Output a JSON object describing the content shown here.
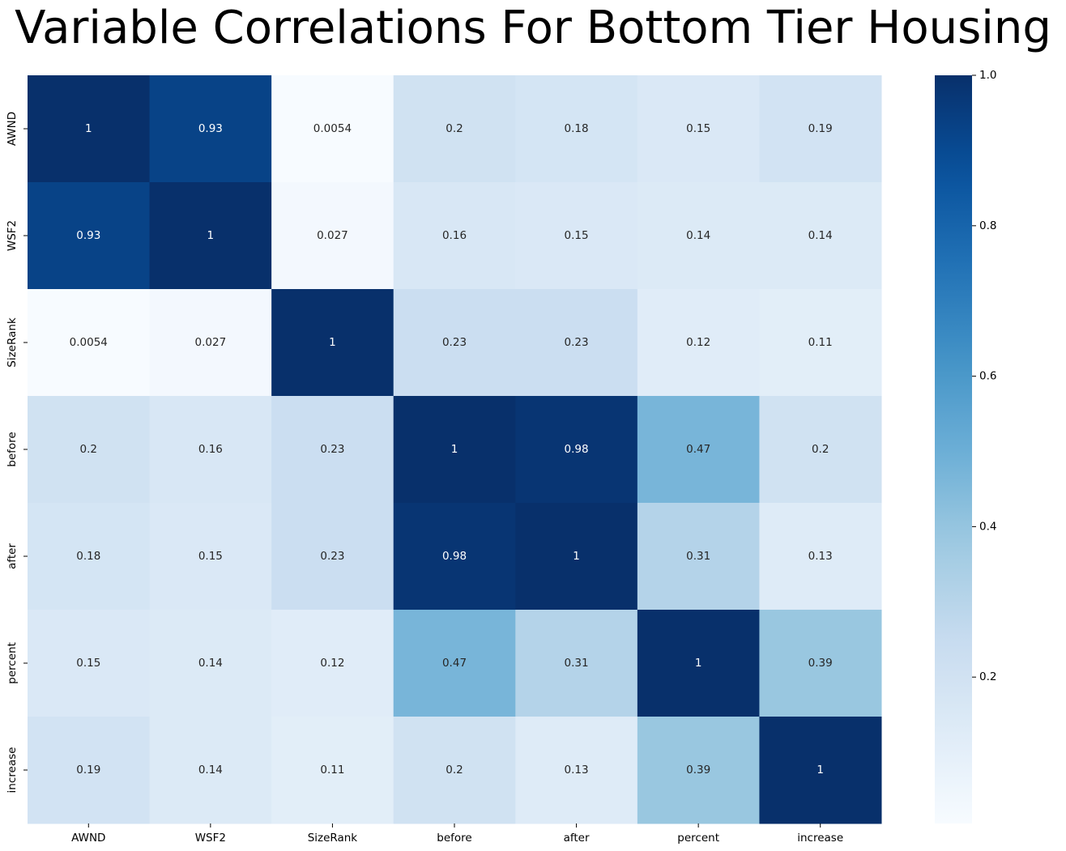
{
  "chart_data": {
    "type": "heatmap",
    "title": "Variable Correlations For Bottom Tier Housing",
    "xlabel": "",
    "ylabel": "",
    "x_categories": [
      "AWND",
      "WSF2",
      "SizeRank",
      "before",
      "after",
      "percent",
      "increase"
    ],
    "y_categories": [
      "AWND",
      "WSF2",
      "SizeRank",
      "before",
      "after",
      "percent",
      "increase"
    ],
    "values": [
      [
        1,
        0.93,
        0.0054,
        0.2,
        0.18,
        0.15,
        0.19
      ],
      [
        0.93,
        1,
        0.027,
        0.16,
        0.15,
        0.14,
        0.14
      ],
      [
        0.0054,
        0.027,
        1,
        0.23,
        0.23,
        0.12,
        0.11
      ],
      [
        0.2,
        0.16,
        0.23,
        1,
        0.98,
        0.47,
        0.2
      ],
      [
        0.18,
        0.15,
        0.23,
        0.98,
        1,
        0.31,
        0.13
      ],
      [
        0.15,
        0.14,
        0.12,
        0.47,
        0.31,
        1,
        0.39
      ],
      [
        0.19,
        0.14,
        0.11,
        0.2,
        0.13,
        0.39,
        1
      ]
    ],
    "annotations": [
      [
        "1",
        "0.93",
        "0.0054",
        "0.2",
        "0.18",
        "0.15",
        "0.19"
      ],
      [
        "0.93",
        "1",
        "0.027",
        "0.16",
        "0.15",
        "0.14",
        "0.14"
      ],
      [
        "0.0054",
        "0.027",
        "1",
        "0.23",
        "0.23",
        "0.12",
        "0.11"
      ],
      [
        "0.2",
        "0.16",
        "0.23",
        "1",
        "0.98",
        "0.47",
        "0.2"
      ],
      [
        "0.18",
        "0.15",
        "0.23",
        "0.98",
        "1",
        "0.31",
        "0.13"
      ],
      [
        "0.15",
        "0.14",
        "0.12",
        "0.47",
        "0.31",
        "1",
        "0.39"
      ],
      [
        "0.19",
        "0.14",
        "0.11",
        "0.2",
        "0.13",
        "0.39",
        "1"
      ]
    ],
    "colormap": "Blues",
    "color_range": [
      0.0054,
      1
    ],
    "colorbar_ticks": [
      "0.2",
      "0.4",
      "0.6",
      "0.8",
      "1.0"
    ],
    "colorbar_tick_values": [
      0.2,
      0.4,
      0.6,
      0.8,
      1.0
    ]
  }
}
